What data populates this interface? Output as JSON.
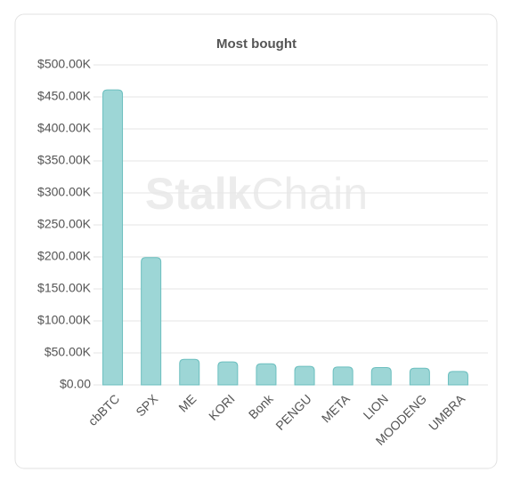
{
  "chart_data": {
    "type": "bar",
    "title": "Most bought",
    "watermark": {
      "bold": "Stalk",
      "regular": "Chain"
    },
    "categories": [
      "cbBTC",
      "SPX",
      "ME",
      "KORI",
      "Bonk",
      "PENGU",
      "META",
      "LION",
      "MOODENG",
      "UMBRA"
    ],
    "values": [
      461000,
      199000,
      40000,
      36000,
      33000,
      29000,
      28000,
      27000,
      26000,
      21000
    ],
    "color": "#9dd6d6",
    "ylim": [
      0,
      500000
    ],
    "yticks": [
      {
        "value": 0,
        "label": "$0.00"
      },
      {
        "value": 50000,
        "label": "$50.00K"
      },
      {
        "value": 100000,
        "label": "$100.00K"
      },
      {
        "value": 150000,
        "label": "$150.00K"
      },
      {
        "value": 200000,
        "label": "$200.00K"
      },
      {
        "value": 250000,
        "label": "$250.00K"
      },
      {
        "value": 300000,
        "label": "$300.00K"
      },
      {
        "value": 350000,
        "label": "$350.00K"
      },
      {
        "value": 400000,
        "label": "$400.00K"
      },
      {
        "value": 450000,
        "label": "$450.00K"
      },
      {
        "value": 500000,
        "label": "$500.00K"
      }
    ],
    "grid": true
  }
}
